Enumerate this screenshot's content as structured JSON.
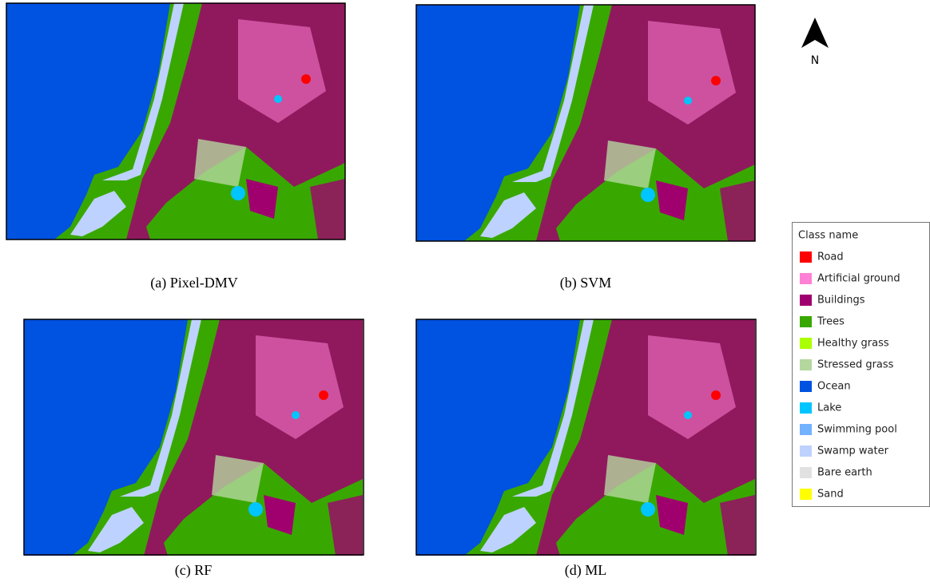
{
  "panels": [
    {
      "caption": "(a) Pixel-DMV"
    },
    {
      "caption": "(b) SVM"
    },
    {
      "caption": "(c) RF"
    },
    {
      "caption": "(d) ML"
    }
  ],
  "north_label": "N",
  "legend": {
    "title": "Class name",
    "items": [
      {
        "label": "Road",
        "color": "#ff0000"
      },
      {
        "label": "Artificial ground",
        "color": "#ff80d5"
      },
      {
        "label": "Buildings",
        "color": "#a0006e"
      },
      {
        "label": "Trees",
        "color": "#38a800"
      },
      {
        "label": "Healthy grass",
        "color": "#aaff00"
      },
      {
        "label": "Stressed grass",
        "color": "#b4d79e"
      },
      {
        "label": "Ocean",
        "color": "#0052e0"
      },
      {
        "label": "Lake",
        "color": "#00c5ff"
      },
      {
        "label": "Swimming pool",
        "color": "#73b2ff"
      },
      {
        "label": "Swamp water",
        "color": "#bed2ff"
      },
      {
        "label": "Bare earth",
        "color": "#e1e1e1"
      },
      {
        "label": "Sand",
        "color": "#ffff00"
      }
    ]
  }
}
